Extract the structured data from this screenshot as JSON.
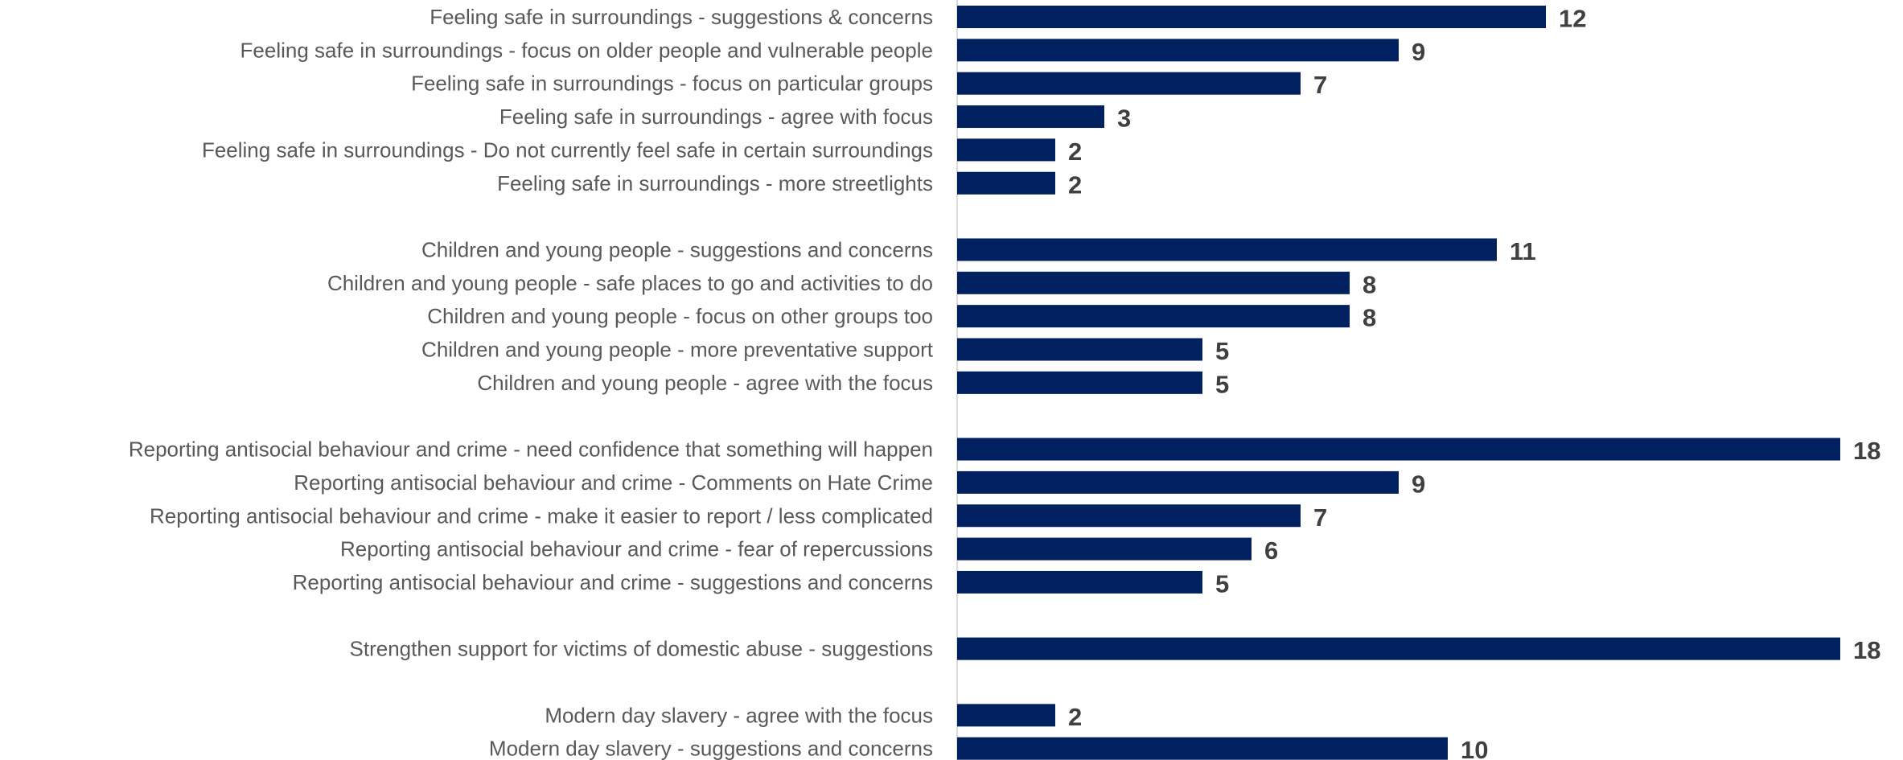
{
  "chart_data": {
    "type": "bar",
    "orientation": "horizontal",
    "bar_color": "#002060",
    "value_label_color": "#404040",
    "category_label_color": "#595959",
    "grid": false,
    "legend": "none",
    "xlim": [
      0,
      18
    ],
    "data_labels": true,
    "groups": [
      {
        "items": [
          {
            "category": "Feeling safe in surroundings - suggestions & concerns",
            "value": 12
          },
          {
            "category": "Feeling safe in surroundings - focus on older people and vulnerable people",
            "value": 9
          },
          {
            "category": "Feeling safe in surroundings - focus on particular groups",
            "value": 7
          },
          {
            "category": "Feeling safe in surroundings - agree with focus",
            "value": 3
          },
          {
            "category": "Feeling safe in surroundings - Do not currently feel safe in certain surroundings",
            "value": 2
          },
          {
            "category": "Feeling safe in surroundings - more streetlights",
            "value": 2
          }
        ]
      },
      {
        "items": [
          {
            "category": "Children and young people - suggestions and concerns",
            "value": 11
          },
          {
            "category": "Children and young people - safe places to go and activities to do",
            "value": 8
          },
          {
            "category": "Children and young people - focus on other groups too",
            "value": 8
          },
          {
            "category": "Children and young people - more preventative support",
            "value": 5
          },
          {
            "category": "Children and young people - agree with the focus",
            "value": 5
          }
        ]
      },
      {
        "items": [
          {
            "category": "Reporting antisocial behaviour and crime - need confidence that something will happen",
            "value": 18
          },
          {
            "category": "Reporting antisocial behaviour and crime - Comments on Hate Crime",
            "value": 9
          },
          {
            "category": "Reporting antisocial behaviour and crime - make it easier to report / less complicated",
            "value": 7
          },
          {
            "category": "Reporting antisocial behaviour and crime - fear of repercussions",
            "value": 6
          },
          {
            "category": "Reporting antisocial behaviour and crime - suggestions and concerns",
            "value": 5
          }
        ]
      },
      {
        "items": [
          {
            "category": "Strengthen support for victims of domestic abuse - suggestions",
            "value": 18
          }
        ]
      },
      {
        "items": [
          {
            "category": "Modern day slavery - agree with the focus",
            "value": 2
          },
          {
            "category": "Modern day slavery - suggestions and concerns",
            "value": 10
          }
        ]
      }
    ]
  }
}
